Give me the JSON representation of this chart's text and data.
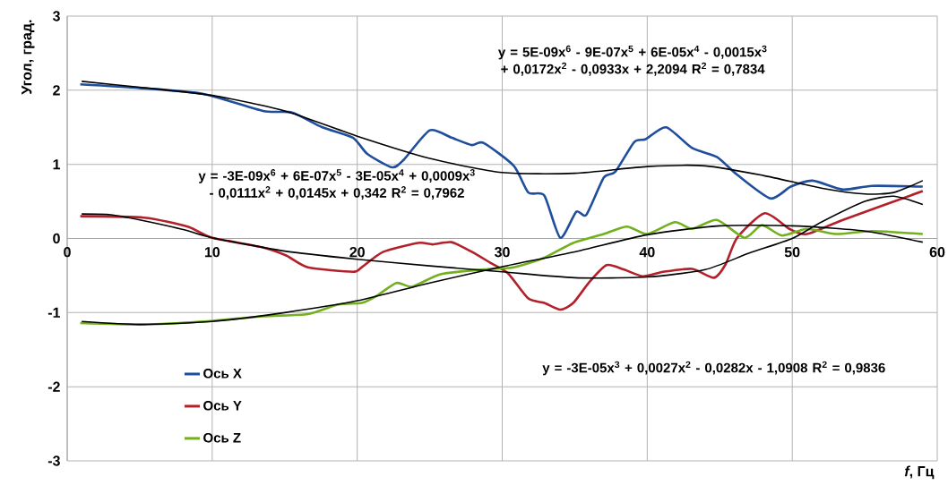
{
  "chart_data": {
    "type": "line",
    "xlabel": "*f*, Гц",
    "ylabel": "Угол, град.",
    "xlim": [
      0,
      60
    ],
    "xticks": [
      0,
      10,
      20,
      30,
      40,
      50,
      60
    ],
    "ylim": [
      -3,
      3
    ],
    "yticks": [
      -3,
      -2,
      -1,
      0,
      1,
      2,
      3
    ],
    "grid": true,
    "legend": "bottom left",
    "annotations": [
      "y = 5E-09x$^{6}$ - 9E-07x$^{5}$ + 6E-05x$^{4}$ - 0,0015x$^{3}$ + 0,0172x$^{2}$ - 0,0933x + 2,2094 R$^{2}$ = 0,7834",
      "y = -3E-09x$^{6}$ + 6E-07x$^{5}$ - 3E-05x$^{4}$ + 0,0009x$^{3}$ - 0,0111x$^{2}$ + 0,0145x + 0,342 R$^{2}$ = 0,7962",
      "y = -3E-05x$^{3}$ + 0,0027x$^{2}$ - 0,0282x - 1,0908 R$^{2}$ = 0,9836"
    ],
    "series": [
      {
        "name": "Ось X",
        "color": "#1f4e9c",
        "x": [
          0.9,
          5,
          9.4,
          13.5,
          15.5,
          17.6,
          19.7,
          20.7,
          22.4,
          23.2,
          25,
          26.5,
          27.9,
          28.7,
          30.8,
          31.8,
          32.9,
          34,
          35.1,
          35.8,
          37,
          37.8,
          39.1,
          39.9,
          41.3,
          43.1,
          44.8,
          46.2,
          48.5,
          49.9,
          51.4,
          53.5,
          55.5,
          59
        ],
        "values": [
          2.08,
          2.03,
          1.95,
          1.72,
          1.7,
          1.5,
          1.36,
          1.14,
          0.96,
          1.06,
          1.46,
          1.36,
          1.26,
          1.29,
          0.98,
          0.62,
          0.58,
          0.01,
          0.36,
          0.32,
          0.82,
          0.9,
          1.3,
          1.34,
          1.5,
          1.22,
          1.1,
          0.86,
          0.54,
          0.7,
          0.78,
          0.66,
          0.71,
          0.7
        ]
      },
      {
        "name": "Ось Y",
        "color": "#b3202a",
        "x": [
          0.9,
          5.3,
          8.3,
          10,
          13.5,
          15.1,
          16.6,
          19.7,
          20.3,
          21.8,
          24.2,
          25.2,
          26.5,
          27.9,
          29.2,
          30.4,
          31.8,
          32.9,
          34,
          34.9,
          36,
          37.2,
          38.4,
          39.7,
          41.1,
          43.1,
          44.6,
          45.4,
          46.2,
          48.1,
          49.8,
          51,
          53.5,
          59
        ],
        "values": [
          0.3,
          0.28,
          0.16,
          0.01,
          -0.12,
          -0.23,
          -0.39,
          -0.45,
          -0.39,
          -0.18,
          -0.06,
          -0.08,
          -0.05,
          -0.18,
          -0.33,
          -0.47,
          -0.81,
          -0.87,
          -0.96,
          -0.87,
          -0.59,
          -0.36,
          -0.42,
          -0.51,
          -0.45,
          -0.41,
          -0.53,
          -0.35,
          0.01,
          0.34,
          0.13,
          0.06,
          0.25,
          0.64
        ]
      },
      {
        "name": "Ось Z",
        "color": "#72b01d",
        "x": [
          0.9,
          5.3,
          9.4,
          13.5,
          16.6,
          18.7,
          20.3,
          21.3,
          22.7,
          23.8,
          25.8,
          29.2,
          30.8,
          32.9,
          34.9,
          37,
          38.6,
          40,
          41.9,
          43.1,
          44.8,
          46.7,
          47.9,
          49.3,
          51,
          53,
          55.5,
          59
        ],
        "values": [
          -1.14,
          -1.16,
          -1.12,
          -1.05,
          -1.02,
          -0.89,
          -0.87,
          -0.78,
          -0.6,
          -0.65,
          -0.48,
          -0.41,
          -0.39,
          -0.26,
          -0.06,
          0.06,
          0.16,
          0.06,
          0.22,
          0.13,
          0.25,
          0.01,
          0.18,
          0.04,
          0.13,
          0.06,
          0.1,
          0.06
        ]
      },
      {
        "color": "#000000",
        "x": [
          1,
          5,
          10,
          15,
          20,
          25,
          30,
          35,
          40,
          44,
          48,
          52,
          55,
          57,
          59
        ],
        "values": [
          2.12,
          2.04,
          1.93,
          1.72,
          1.38,
          1.08,
          0.89,
          0.88,
          0.97,
          0.98,
          0.85,
          0.68,
          0.6,
          0.62,
          0.78
        ]
      },
      {
        "color": "#000000",
        "x": [
          1,
          3,
          5,
          8,
          10,
          15,
          20,
          25,
          30,
          35,
          40,
          44,
          47,
          50,
          52,
          55,
          57,
          59
        ],
        "values": [
          0.33,
          0.32,
          0.25,
          0.12,
          0.01,
          -0.17,
          -0.28,
          -0.37,
          -0.45,
          -0.53,
          -0.52,
          -0.42,
          -0.2,
          0.0,
          0.22,
          0.5,
          0.57,
          0.46
        ]
      },
      {
        "color": "#000000",
        "x": [
          1,
          5,
          10,
          15,
          20,
          25,
          30,
          35,
          40,
          45,
          50,
          55,
          59
        ],
        "values": [
          -1.12,
          -1.16,
          -1.12,
          -1.0,
          -0.84,
          -0.6,
          -0.38,
          -0.18,
          0.05,
          0.17,
          0.17,
          0.1,
          -0.05
        ]
      }
    ]
  }
}
